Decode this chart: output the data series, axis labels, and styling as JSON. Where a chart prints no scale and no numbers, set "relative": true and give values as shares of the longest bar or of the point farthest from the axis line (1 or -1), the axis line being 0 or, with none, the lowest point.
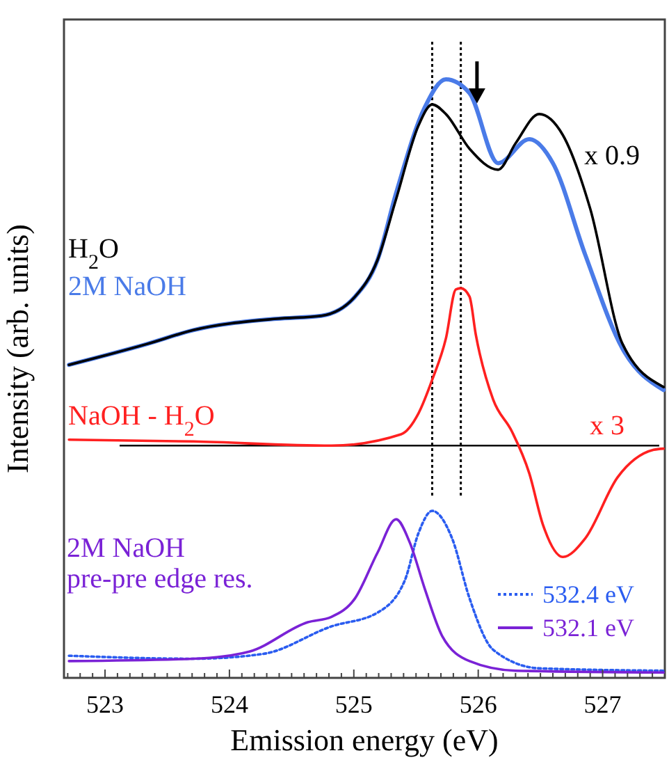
{
  "chart_data": {
    "type": "line",
    "relative": true,
    "xlabel": "Emission energy (eV)",
    "ylabel": "Intensity (arb. units)",
    "xlim": [
      522.67,
      527.5
    ],
    "xticks": [
      {
        "value": 522.7,
        "label": null
      },
      {
        "value": 522.8,
        "label": null
      },
      {
        "value": 522.9,
        "label": null
      },
      523,
      {
        "value": 523.1,
        "label": null
      },
      {
        "value": 523.2,
        "label": null
      },
      {
        "value": 523.3,
        "label": null
      },
      {
        "value": 523.4,
        "label": null
      },
      {
        "value": 523.5,
        "label": null
      },
      {
        "value": 523.6,
        "label": null
      },
      {
        "value": 523.7,
        "label": null
      },
      {
        "value": 523.8,
        "label": null
      },
      {
        "value": 523.9,
        "label": null
      },
      524,
      {
        "value": 524.1,
        "label": null
      },
      {
        "value": 524.2,
        "label": null
      },
      {
        "value": 524.3,
        "label": null
      },
      {
        "value": 524.4,
        "label": null
      },
      {
        "value": 524.5,
        "label": null
      },
      {
        "value": 524.6,
        "label": null
      },
      {
        "value": 524.7,
        "label": null
      },
      {
        "value": 524.8,
        "label": null
      },
      {
        "value": 524.9,
        "label": null
      },
      525,
      {
        "value": 525.1,
        "label": null
      },
      {
        "value": 525.2,
        "label": null
      },
      {
        "value": 525.3,
        "label": null
      },
      {
        "value": 525.4,
        "label": null
      },
      {
        "value": 525.5,
        "label": null
      },
      {
        "value": 525.6,
        "label": null
      },
      {
        "value": 525.7,
        "label": null
      },
      {
        "value": 525.8,
        "label": null
      },
      {
        "value": 525.9,
        "label": null
      },
      526,
      {
        "value": 526.1,
        "label": null
      },
      {
        "value": 526.2,
        "label": null
      },
      {
        "value": 526.3,
        "label": null
      },
      {
        "value": 526.4,
        "label": null
      },
      {
        "value": 526.5,
        "label": null
      },
      {
        "value": 526.6,
        "label": null
      },
      {
        "value": 526.7,
        "label": null
      },
      {
        "value": 526.8,
        "label": null
      },
      {
        "value": 526.9,
        "label": null
      },
      527,
      {
        "value": 527.1,
        "label": null
      },
      {
        "value": 527.2,
        "label": null
      },
      {
        "value": 527.3,
        "label": null
      },
      {
        "value": 527.4,
        "label": null
      }
    ],
    "legend": "bottom right",
    "marker": "none",
    "series": [
      {
        "name": "H$_{2}$O",
        "color": "#000000",
        "line_style": "solid",
        "x": [
          522.71,
          523.34,
          523.71,
          524.38,
          524.74,
          525.01,
          525.19,
          525.34,
          525.52,
          525.63,
          525.74,
          525.93,
          526.16,
          526.3,
          526.49,
          526.68,
          526.9,
          527.16,
          527.49
        ],
        "values": [
          0.523,
          0.558,
          0.581,
          0.6,
          0.605,
          0.637,
          0.698,
          0.8,
          0.923,
          0.958,
          0.942,
          0.884,
          0.849,
          0.893,
          0.942,
          0.907,
          0.784,
          0.558,
          0.486
        ]
      },
      {
        "name": "2M NaOH",
        "color": "#4a7be8",
        "line_style": "solid",
        "x": [
          522.71,
          523.34,
          523.71,
          524.38,
          524.74,
          525.01,
          525.19,
          525.34,
          525.57,
          525.74,
          525.93,
          526.16,
          526.41,
          526.6,
          526.86,
          527.16,
          527.49
        ],
        "values": [
          0.523,
          0.558,
          0.581,
          0.6,
          0.605,
          0.637,
          0.698,
          0.81,
          0.953,
          1.0,
          0.977,
          0.86,
          0.9,
          0.86,
          0.707,
          0.55,
          0.481
        ]
      },
      {
        "name": "NaOH - H$_{2}$O",
        "color": "#ff2020",
        "line_style": "solid",
        "x": [
          522.71,
          523.71,
          524.82,
          525.38,
          525.52,
          525.63,
          525.74,
          525.82,
          525.86,
          525.93,
          525.98,
          526.12,
          526.27,
          526.41,
          526.52,
          526.68,
          526.86,
          527.12,
          527.41,
          527.49
        ],
        "values": [
          0.398,
          0.395,
          0.388,
          0.407,
          0.442,
          0.498,
          0.567,
          0.649,
          0.651,
          0.637,
          0.574,
          0.465,
          0.412,
          0.342,
          0.256,
          0.202,
          0.233,
          0.335,
          0.381,
          0.383
        ]
      },
      {
        "name": "532.4 eV",
        "color": "#2a5cf0",
        "line_style": "dotted",
        "x": [
          522.71,
          523.71,
          524.27,
          524.82,
          525.19,
          525.41,
          525.52,
          525.63,
          525.79,
          525.93,
          526.12,
          526.49,
          527.49
        ],
        "values": [
          0.037,
          0.032,
          0.04,
          0.086,
          0.109,
          0.163,
          0.242,
          0.279,
          0.233,
          0.133,
          0.047,
          0.016,
          0.012
        ]
      },
      {
        "name": "532.1 eV",
        "color": "#7a22d6",
        "line_style": "solid",
        "x": [
          522.71,
          523.71,
          524.16,
          524.63,
          524.82,
          525.01,
          525.19,
          525.34,
          525.45,
          525.57,
          525.71,
          525.93,
          526.3,
          527.49
        ],
        "values": [
          0.028,
          0.032,
          0.044,
          0.093,
          0.102,
          0.133,
          0.209,
          0.265,
          0.226,
          0.149,
          0.07,
          0.028,
          0.012,
          0.009
        ]
      }
    ],
    "ref_lines": [
      {
        "axis": "x",
        "value": 525.63,
        "color": "#000000",
        "line_style": "dotted"
      },
      {
        "axis": "x",
        "value": 525.86,
        "color": "#000000",
        "line_style": "dotted"
      },
      {
        "axis": "y",
        "value": 0.388,
        "color": "#000000",
        "line_style": "solid"
      }
    ],
    "annotations": [
      "x 0.9",
      "x 3",
      "2M NaOH\npre-pre edge res."
    ]
  }
}
